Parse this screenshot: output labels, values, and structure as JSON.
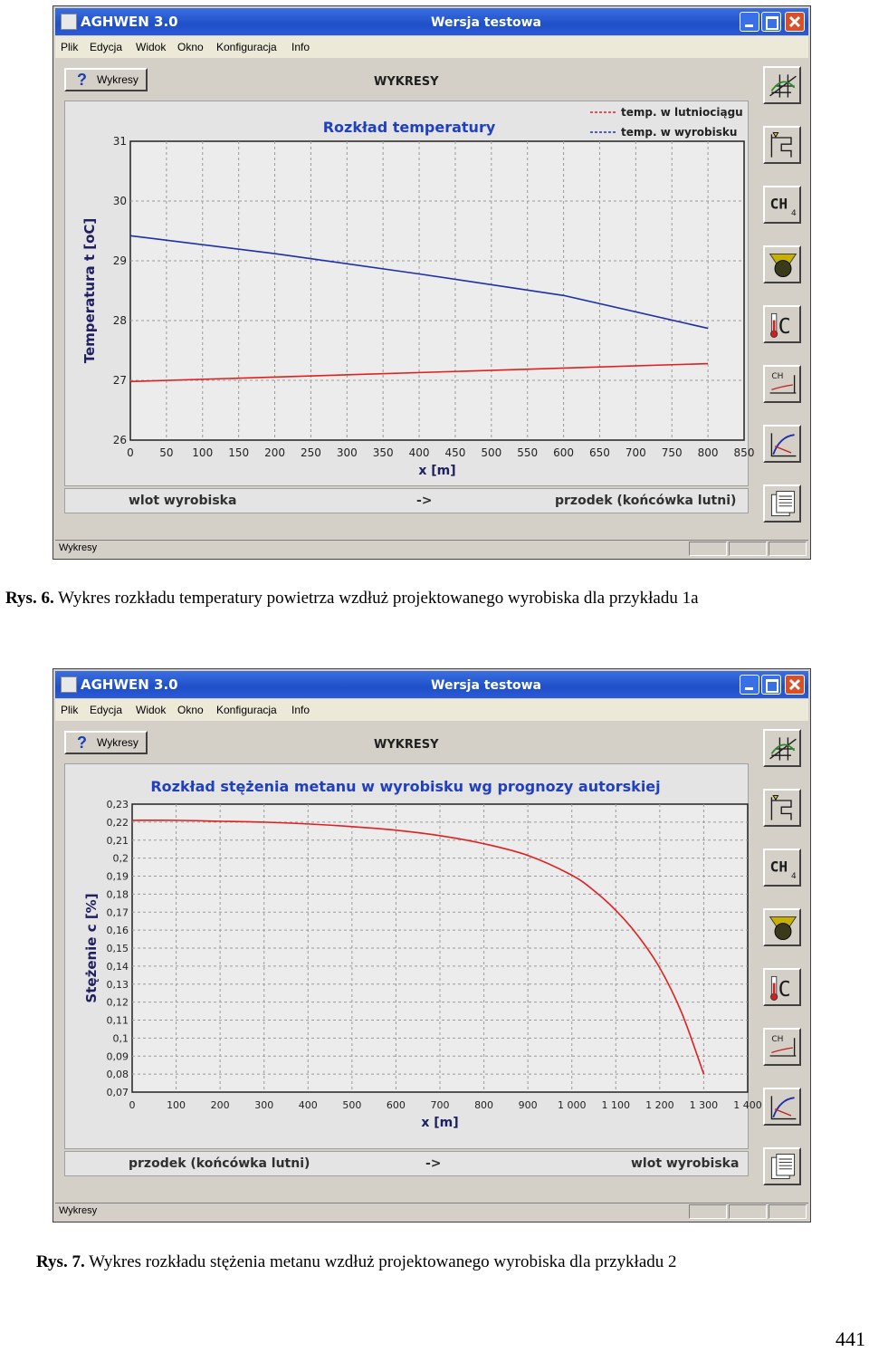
{
  "windows": [
    {
      "app_title": "AGHWEN 3.0",
      "subtitle": "Wersja testowa",
      "menu": [
        "Plik",
        "Edycja",
        "Widok",
        "Okno",
        "Konfiguracja",
        "Info"
      ],
      "help_button_label": "Wykresy",
      "header": "WYKRESY",
      "footer": {
        "left": "wlot wyrobiska",
        "center": "->",
        "right": "przodek (końcówka lutni)"
      },
      "status": "Wykresy",
      "tools": [
        "grid-icon",
        "duct-icon",
        "ch4-icon",
        "fan-icon",
        "thermometer-icon",
        "ch4-chart-icon",
        "curve-chart-icon",
        "report-icon"
      ],
      "tool_text": {
        "ch4": "CH",
        "ch4_sub": "4",
        "temp": "C",
        "ch4_small": "CH"
      },
      "chart_data": {
        "type": "line",
        "title": "Rozkład temperatury",
        "xlabel": "x [m]",
        "ylabel": "Temperatura  t [oC]",
        "xlim": [
          0,
          850
        ],
        "ylim": [
          26,
          31
        ],
        "xticks": [
          0,
          50,
          100,
          150,
          200,
          250,
          300,
          350,
          400,
          450,
          500,
          550,
          600,
          650,
          700,
          750,
          800,
          850
        ],
        "yticks": [
          26,
          27,
          28,
          29,
          30,
          31
        ],
        "ytick_labels": [
          "26",
          "27",
          "28",
          "29",
          "30",
          "31"
        ],
        "grid": true,
        "legend_position": "top-right",
        "series": [
          {
            "name": "temp. w lutniociągu",
            "color": "#e02020",
            "x": [
              0,
              800
            ],
            "y": [
              26.98,
              27.28
            ]
          },
          {
            "name": "temp. w wyrobisku",
            "color": "#1f2fa8",
            "x": [
              0,
              200,
              400,
              600,
              800
            ],
            "y": [
              29.42,
              29.12,
              28.78,
              28.42,
              27.87
            ]
          }
        ]
      }
    },
    {
      "app_title": "AGHWEN 3.0",
      "subtitle": "Wersja testowa",
      "menu": [
        "Plik",
        "Edycja",
        "Widok",
        "Okno",
        "Konfiguracja",
        "Info"
      ],
      "help_button_label": "Wykresy",
      "header": "WYKRESY",
      "footer": {
        "left": "przodek (końcówka lutni)",
        "center": "->",
        "right": "wlot wyrobiska"
      },
      "status": "Wykresy",
      "tools": [
        "grid-icon",
        "duct-icon",
        "ch4-icon",
        "fan-icon",
        "thermometer-icon",
        "ch4-chart-icon",
        "curve-chart-icon",
        "report-icon"
      ],
      "tool_text": {
        "ch4": "CH",
        "ch4_sub": "4",
        "temp": "C",
        "ch4_small": "CH"
      },
      "chart_data": {
        "type": "line",
        "title": "Rozkład stężenia metanu w wyrobisku wg prognozy autorskiej",
        "xlabel": "x [m]",
        "ylabel": "Stężenie  c [%]",
        "xlim": [
          0,
          1400
        ],
        "ylim": [
          0.07,
          0.23
        ],
        "xticks": [
          0,
          100,
          200,
          300,
          400,
          500,
          600,
          700,
          800,
          900,
          1000,
          1100,
          1200,
          1300,
          1400
        ],
        "xtick_labels": [
          "0",
          "100",
          "200",
          "300",
          "400",
          "500",
          "600",
          "700",
          "800",
          "900",
          "1 000",
          "1 100",
          "1 200",
          "1 300",
          "1 400"
        ],
        "yticks": [
          0.07,
          0.08,
          0.09,
          0.1,
          0.11,
          0.12,
          0.13,
          0.14,
          0.15,
          0.16,
          0.17,
          0.18,
          0.19,
          0.2,
          0.21,
          0.22,
          0.23
        ],
        "ytick_labels": [
          "0,07",
          "0,08",
          "0,09",
          "0,1",
          "0,11",
          "0,12",
          "0,13",
          "0,14",
          "0,15",
          "0,16",
          "0,17",
          "0,18",
          "0,19",
          "0,2",
          "0,21",
          "0,22",
          "0,23"
        ],
        "grid": true,
        "series": [
          {
            "color": "#e02020",
            "x": [
              0,
              100,
              200,
              300,
              400,
              500,
              600,
              700,
              800,
              900,
              1000,
              1050,
              1100,
              1150,
              1200,
              1250,
              1300
            ],
            "y": [
              0.221,
              0.221,
              0.2205,
              0.22,
              0.219,
              0.2175,
              0.2155,
              0.2125,
              0.208,
              0.2015,
              0.1905,
              0.182,
              0.171,
              0.157,
              0.139,
              0.114,
              0.08
            ]
          }
        ]
      }
    }
  ],
  "captions": [
    {
      "label": "Rys. 6.",
      "text": " Wykres rozkładu temperatury powietrza wzdłuż projektowanego wyrobiska dla przykładu 1a"
    },
    {
      "label": "Rys. 7.",
      "text": " Wykres rozkładu stężenia metanu wzdłuż projektowanego wyrobiska dla przykładu 2"
    }
  ],
  "page_number": "441"
}
